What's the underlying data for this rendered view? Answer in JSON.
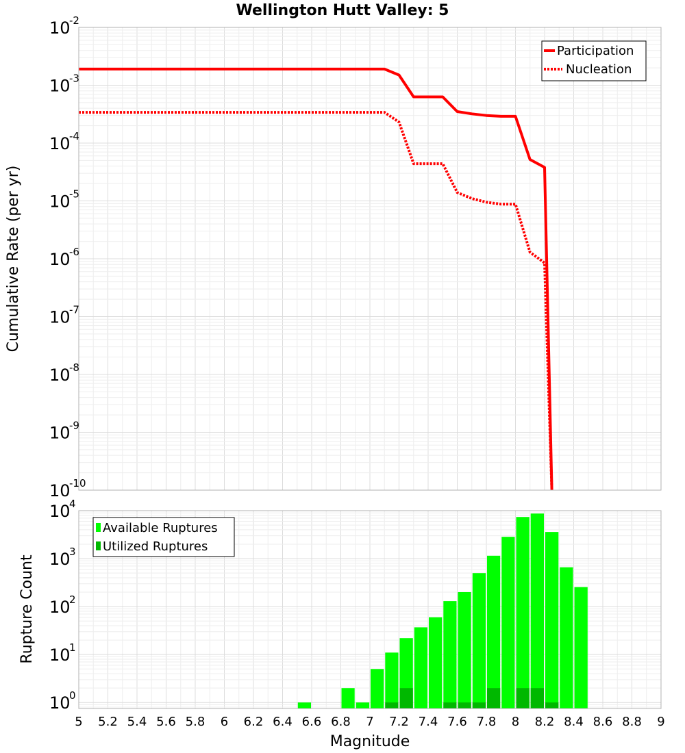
{
  "chart_data": [
    {
      "type": "line",
      "title": "Wellington Hutt Valley: 5",
      "ylabel": "Cumulative Rate (per yr)",
      "xlabel": "",
      "xlim": [
        5,
        9
      ],
      "ylim": [
        1e-10,
        0.01
      ],
      "yscale": "log",
      "grid": true,
      "legend_position": "top-right",
      "series": [
        {
          "name": "Participation",
          "style": "solid",
          "color": "#ff0000",
          "x": [
            5.0,
            5.1,
            5.2,
            5.3,
            5.4,
            5.5,
            5.6,
            5.7,
            5.8,
            5.9,
            6.0,
            6.1,
            6.2,
            6.3,
            6.4,
            6.5,
            6.6,
            6.7,
            6.8,
            6.9,
            7.0,
            7.1,
            7.2,
            7.3,
            7.4,
            7.5,
            7.6,
            7.7,
            7.8,
            7.9,
            8.0,
            8.1,
            8.2,
            8.25
          ],
          "y": [
            0.0019,
            0.0019,
            0.0019,
            0.0019,
            0.0019,
            0.0019,
            0.0019,
            0.0019,
            0.0019,
            0.0019,
            0.0019,
            0.0019,
            0.0019,
            0.0019,
            0.0019,
            0.0019,
            0.0019,
            0.0019,
            0.0019,
            0.0019,
            0.0019,
            0.0019,
            0.0015,
            0.00063,
            0.00063,
            0.00063,
            0.00035,
            0.00032,
            0.0003,
            0.00029,
            0.00029,
            5.2e-05,
            3.8e-05,
            1e-10
          ]
        },
        {
          "name": "Nucleation",
          "style": "dotted",
          "color": "#ff0000",
          "x": [
            5.0,
            5.1,
            5.2,
            5.3,
            5.4,
            5.5,
            5.6,
            5.7,
            5.8,
            5.9,
            6.0,
            6.1,
            6.2,
            6.3,
            6.4,
            6.5,
            6.6,
            6.7,
            6.8,
            6.9,
            7.0,
            7.1,
            7.2,
            7.3,
            7.4,
            7.5,
            7.6,
            7.7,
            7.8,
            7.9,
            8.0,
            8.1,
            8.2,
            8.25
          ],
          "y": [
            0.00034,
            0.00034,
            0.00034,
            0.00034,
            0.00034,
            0.00034,
            0.00034,
            0.00034,
            0.00034,
            0.00034,
            0.00034,
            0.00034,
            0.00034,
            0.00034,
            0.00034,
            0.00034,
            0.00034,
            0.00034,
            0.00034,
            0.00034,
            0.00034,
            0.00034,
            0.00023,
            4.4e-05,
            4.4e-05,
            4.4e-05,
            1.4e-05,
            1.1e-05,
            9.5e-06,
            8.8e-06,
            8.8e-06,
            1.3e-06,
            8.5e-07,
            1e-10
          ]
        }
      ],
      "yticks": [
        {
          "base": "10",
          "exp": "-2"
        },
        {
          "base": "10",
          "exp": "-3"
        },
        {
          "base": "10",
          "exp": "-4"
        },
        {
          "base": "10",
          "exp": "-5"
        },
        {
          "base": "10",
          "exp": "-6"
        },
        {
          "base": "10",
          "exp": "-7"
        },
        {
          "base": "10",
          "exp": "-8"
        },
        {
          "base": "10",
          "exp": "-9"
        },
        {
          "base": "10",
          "exp": "-10"
        }
      ]
    },
    {
      "type": "bar",
      "title": "",
      "ylabel": "Rupture Count",
      "xlabel": "Magnitude",
      "xlim": [
        5,
        9
      ],
      "ylim": [
        0.75,
        10000
      ],
      "yscale": "log",
      "grid": true,
      "legend_position": "top-left",
      "bin_width": 0.1,
      "series": [
        {
          "name": "Available Ruptures",
          "color": "#00ff00",
          "x": [
            6.55,
            6.85,
            6.95,
            7.05,
            7.15,
            7.25,
            7.35,
            7.45,
            7.55,
            7.65,
            7.75,
            7.85,
            7.95,
            8.05,
            8.15,
            8.25,
            8.35,
            8.45
          ],
          "values": [
            1,
            2,
            1,
            5,
            11,
            22,
            37,
            60,
            130,
            200,
            500,
            1150,
            2850,
            7400,
            8700,
            3600,
            660,
            255
          ]
        },
        {
          "name": "Utilized Ruptures",
          "color": "#00b800",
          "x": [
            7.15,
            7.25,
            7.55,
            7.65,
            7.75,
            7.85,
            8.05,
            8.15,
            8.25
          ],
          "values": [
            1,
            2,
            1,
            1,
            1,
            2,
            2,
            2,
            1
          ]
        }
      ],
      "yticks": [
        {
          "base": "10",
          "exp": "4"
        },
        {
          "base": "10",
          "exp": "3"
        },
        {
          "base": "10",
          "exp": "2"
        },
        {
          "base": "10",
          "exp": "1"
        },
        {
          "base": "10",
          "exp": "0"
        }
      ],
      "xticks": [
        "5",
        "5.2",
        "5.4",
        "5.6",
        "5.8",
        "6",
        "6.2",
        "6.4",
        "6.6",
        "6.8",
        "7",
        "7.2",
        "7.4",
        "7.6",
        "7.8",
        "8",
        "8.2",
        "8.4",
        "8.6",
        "8.8",
        "9"
      ]
    }
  ]
}
